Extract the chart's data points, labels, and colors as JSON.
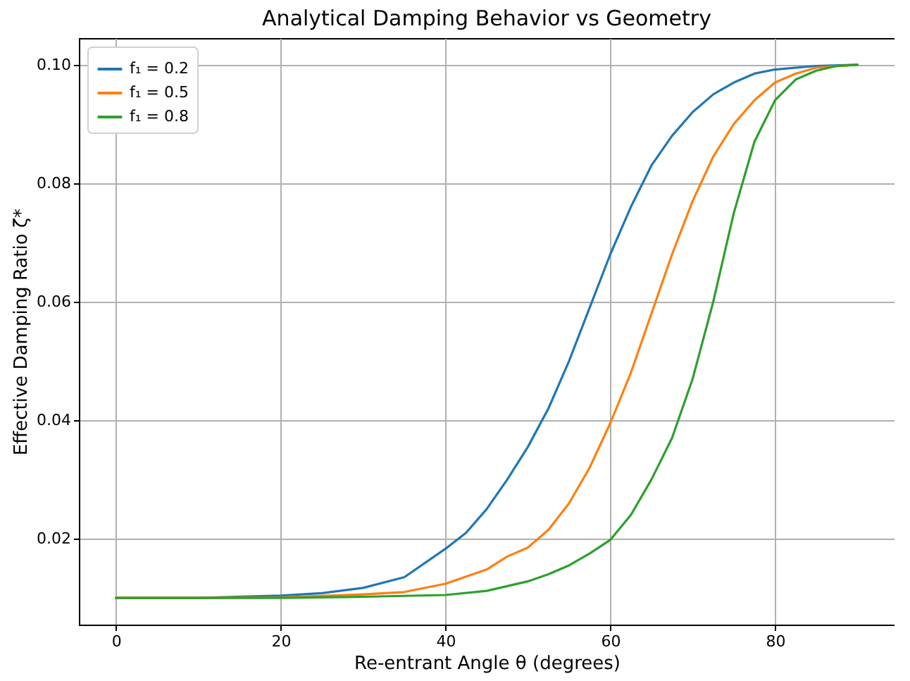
{
  "chart_data": {
    "type": "line",
    "title": "Analytical Damping Behavior vs Geometry",
    "xlabel": "Re-entrant Angle θ (degrees)",
    "ylabel": "Effective Damping Ratio ζ*",
    "xlim": [
      -4.5,
      94.5
    ],
    "xticks": [
      0,
      20,
      40,
      60,
      80
    ],
    "ylim": [
      0.0055,
      0.1045
    ],
    "yticks": [
      0.02,
      0.04,
      0.06,
      0.08,
      {
        "value": 0.1,
        "label": "0.10"
      }
    ],
    "grid": true,
    "legend": "top left",
    "series": [
      {
        "name": "f₁ = 0.2",
        "color": "#1f77b4",
        "x": [
          0,
          10,
          20,
          25,
          30,
          35,
          40,
          42.5,
          45,
          47.5,
          50,
          52.5,
          55,
          57.5,
          60,
          62.5,
          65,
          67.5,
          70,
          72.5,
          75,
          77.5,
          80,
          85,
          90
        ],
        "values": [
          0.01,
          0.01,
          0.0104,
          0.0108,
          0.0117,
          0.0135,
          0.0183,
          0.021,
          0.025,
          0.03,
          0.0355,
          0.042,
          0.05,
          0.059,
          0.068,
          0.076,
          0.083,
          0.088,
          0.092,
          0.095,
          0.097,
          0.0985,
          0.0992,
          0.0998,
          0.1
        ]
      },
      {
        "name": "f₁ = 0.5",
        "color": "#ff7f0e",
        "x": [
          0,
          10,
          20,
          30,
          35,
          40,
          45,
          47.5,
          50,
          52.5,
          55,
          57.5,
          60,
          62.5,
          65,
          67.5,
          70,
          72.5,
          75,
          77.5,
          80,
          82.5,
          85,
          90
        ],
        "values": [
          0.01,
          0.01,
          0.0101,
          0.0106,
          0.011,
          0.0124,
          0.0148,
          0.017,
          0.0185,
          0.0215,
          0.026,
          0.032,
          0.0395,
          0.048,
          0.058,
          0.068,
          0.077,
          0.0845,
          0.09,
          0.094,
          0.097,
          0.0985,
          0.0995,
          0.1
        ]
      },
      {
        "name": "f₁ = 0.8",
        "color": "#2ca02c",
        "x": [
          0,
          10,
          20,
          30,
          40,
          45,
          50,
          52.5,
          55,
          57.5,
          60,
          62.5,
          65,
          67.5,
          70,
          72.5,
          75,
          77.5,
          80,
          82.5,
          85,
          87.5,
          90
        ],
        "values": [
          0.01,
          0.01,
          0.01,
          0.0102,
          0.0105,
          0.0112,
          0.0128,
          0.014,
          0.0155,
          0.0175,
          0.0198,
          0.024,
          0.03,
          0.037,
          0.047,
          0.06,
          0.075,
          0.087,
          0.094,
          0.0975,
          0.099,
          0.0998,
          0.1
        ]
      }
    ]
  }
}
